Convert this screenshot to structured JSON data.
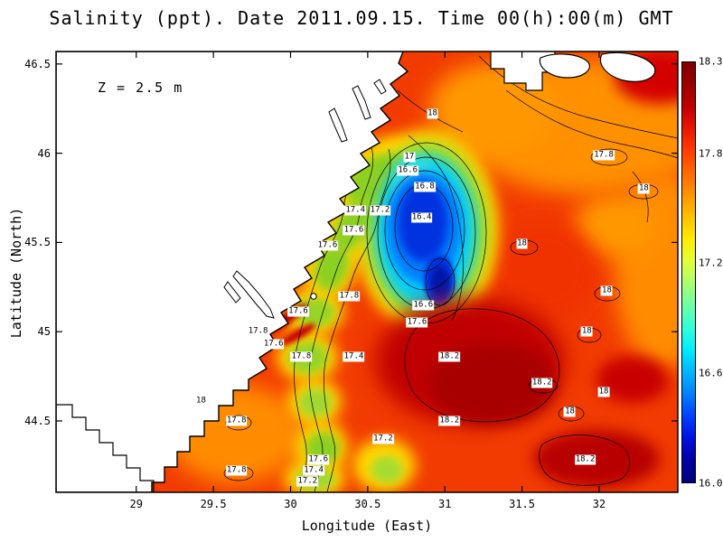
{
  "title": "Salinity (ppt). Date 2011.09.15. Time 00(h):00(m) GMT",
  "annotation": "Z = 2.5 m",
  "axes": {
    "x_label": "Longitude (East)",
    "y_label": "Latitude (North)",
    "x_ticks": [
      {
        "label": "29",
        "value": 29
      },
      {
        "label": "29.5",
        "value": 29.5
      },
      {
        "label": "30",
        "value": 30
      },
      {
        "label": "30.5",
        "value": 30.5
      },
      {
        "label": "31",
        "value": 31
      },
      {
        "label": "31.5",
        "value": 31.5
      },
      {
        "label": "32",
        "value": 32
      }
    ],
    "y_ticks": [
      {
        "label": "46.5",
        "value": 46.5
      },
      {
        "label": "46",
        "value": 46
      },
      {
        "label": "45.5",
        "value": 45.5
      },
      {
        "label": "45",
        "value": 45
      },
      {
        "label": "44.5",
        "value": 44.5
      }
    ]
  },
  "colorbar": {
    "min": 16.0,
    "max": 18.3,
    "ticks": [
      {
        "label": "18.3",
        "value": 18.3
      },
      {
        "label": "17.8",
        "value": 17.8
      },
      {
        "label": "17.2",
        "value": 17.2
      },
      {
        "label": "16.6",
        "value": 16.6
      },
      {
        "label": "16.0",
        "value": 16.0
      }
    ],
    "gradient_top_to_bottom": [
      "#7f0000",
      "#9b0000",
      "#c00000",
      "#e81600",
      "#ff3c00",
      "#ff6900",
      "#ff9400",
      "#ffc100",
      "#ffec00",
      "#e2ff38",
      "#aaff6e",
      "#6effa8",
      "#32ffd8",
      "#00ecff",
      "#00b6ff",
      "#0080ff",
      "#0040ff",
      "#0010e0",
      "#0000a0",
      "#00007f"
    ]
  },
  "chart_data": {
    "type": "heatmap",
    "title": "Salinity (ppt). Date 2011.09.15. Time 00(h):00(m) GMT",
    "variable": "Salinity",
    "units": "ppt",
    "depth": "Z = 2.5 m",
    "date": "2011.09.15",
    "time": "00(h):00(m) GMT",
    "xlabel": "Longitude (East)",
    "ylabel": "Latitude (North)",
    "xlim": [
      28.48,
      32.51
    ],
    "ylim": [
      44.1,
      46.57
    ],
    "x_ticks": [
      29,
      29.5,
      30,
      30.5,
      31,
      31.5,
      32
    ],
    "y_ticks": [
      44.5,
      45,
      45.5,
      46,
      46.5
    ],
    "colormap": "jet",
    "colorbar_range": [
      16.0,
      18.3
    ],
    "colorbar_ticks": [
      16.0,
      16.6,
      17.2,
      17.8,
      18.3
    ],
    "contour_interval": 0.2,
    "contour_labels": [
      {
        "value": "18",
        "lon": 30.92,
        "lat": 46.22
      },
      {
        "value": "17.8",
        "lon": 32.03,
        "lat": 45.99
      },
      {
        "value": "18",
        "lon": 32.29,
        "lat": 45.8
      },
      {
        "value": "17",
        "lon": 30.77,
        "lat": 45.98
      },
      {
        "value": "16.6",
        "lon": 30.76,
        "lat": 45.9
      },
      {
        "value": "16.8",
        "lon": 30.87,
        "lat": 45.81
      },
      {
        "value": "17.2",
        "lon": 30.58,
        "lat": 45.68
      },
      {
        "value": "17.4",
        "lon": 30.42,
        "lat": 45.68
      },
      {
        "value": "16.4",
        "lon": 30.85,
        "lat": 45.64
      },
      {
        "value": "17.6",
        "lon": 30.41,
        "lat": 45.57
      },
      {
        "value": "17.6",
        "lon": 30.24,
        "lat": 45.48
      },
      {
        "value": "18",
        "lon": 31.5,
        "lat": 45.49
      },
      {
        "value": "16.6",
        "lon": 30.86,
        "lat": 45.15
      },
      {
        "value": "17.6",
        "lon": 30.82,
        "lat": 45.05
      },
      {
        "value": "18",
        "lon": 32.05,
        "lat": 45.23
      },
      {
        "value": "17.8",
        "lon": 30.38,
        "lat": 45.2
      },
      {
        "value": "17.6",
        "lon": 30.05,
        "lat": 45.11
      },
      {
        "value": "17.8",
        "lon": 29.79,
        "lat": 45.0
      },
      {
        "value": "17.6",
        "lon": 29.89,
        "lat": 44.93
      },
      {
        "value": "17.8",
        "lon": 30.07,
        "lat": 44.86
      },
      {
        "value": "17.4",
        "lon": 30.41,
        "lat": 44.86
      },
      {
        "value": "18.2",
        "lon": 31.03,
        "lat": 44.86
      },
      {
        "value": "18",
        "lon": 31.92,
        "lat": 45.0
      },
      {
        "value": "18.2",
        "lon": 31.63,
        "lat": 44.71
      },
      {
        "value": "18",
        "lon": 32.03,
        "lat": 44.66
      },
      {
        "value": "18",
        "lon": 29.42,
        "lat": 44.61
      },
      {
        "value": "17.8",
        "lon": 29.65,
        "lat": 44.5
      },
      {
        "value": "18.2",
        "lon": 31.03,
        "lat": 44.5
      },
      {
        "value": "17.2",
        "lon": 30.6,
        "lat": 44.4
      },
      {
        "value": "18",
        "lon": 31.81,
        "lat": 44.55
      },
      {
        "value": "17.6",
        "lon": 30.18,
        "lat": 44.28
      },
      {
        "value": "17.4",
        "lon": 30.15,
        "lat": 44.22
      },
      {
        "value": "17.8",
        "lon": 29.65,
        "lat": 44.22
      },
      {
        "value": "18.2",
        "lon": 31.91,
        "lat": 44.28
      },
      {
        "value": "17.2",
        "lon": 30.11,
        "lat": 44.16
      }
    ],
    "features": [
      "Low-salinity core 16.2-16.6 ppt (blue) centered near 30.9E 45.5N",
      "Fresh green-yellow coastal band 17.2-17.6 ppt along the northwestern shore",
      "High-salinity tongue >18.2 ppt (dark red) near 31.0E 44.85N and in the southeast",
      "Open-sea background salinity 17.8-18.1 ppt (red/orange)",
      "White region at left: land with lagoons and stepped model coastline"
    ]
  }
}
